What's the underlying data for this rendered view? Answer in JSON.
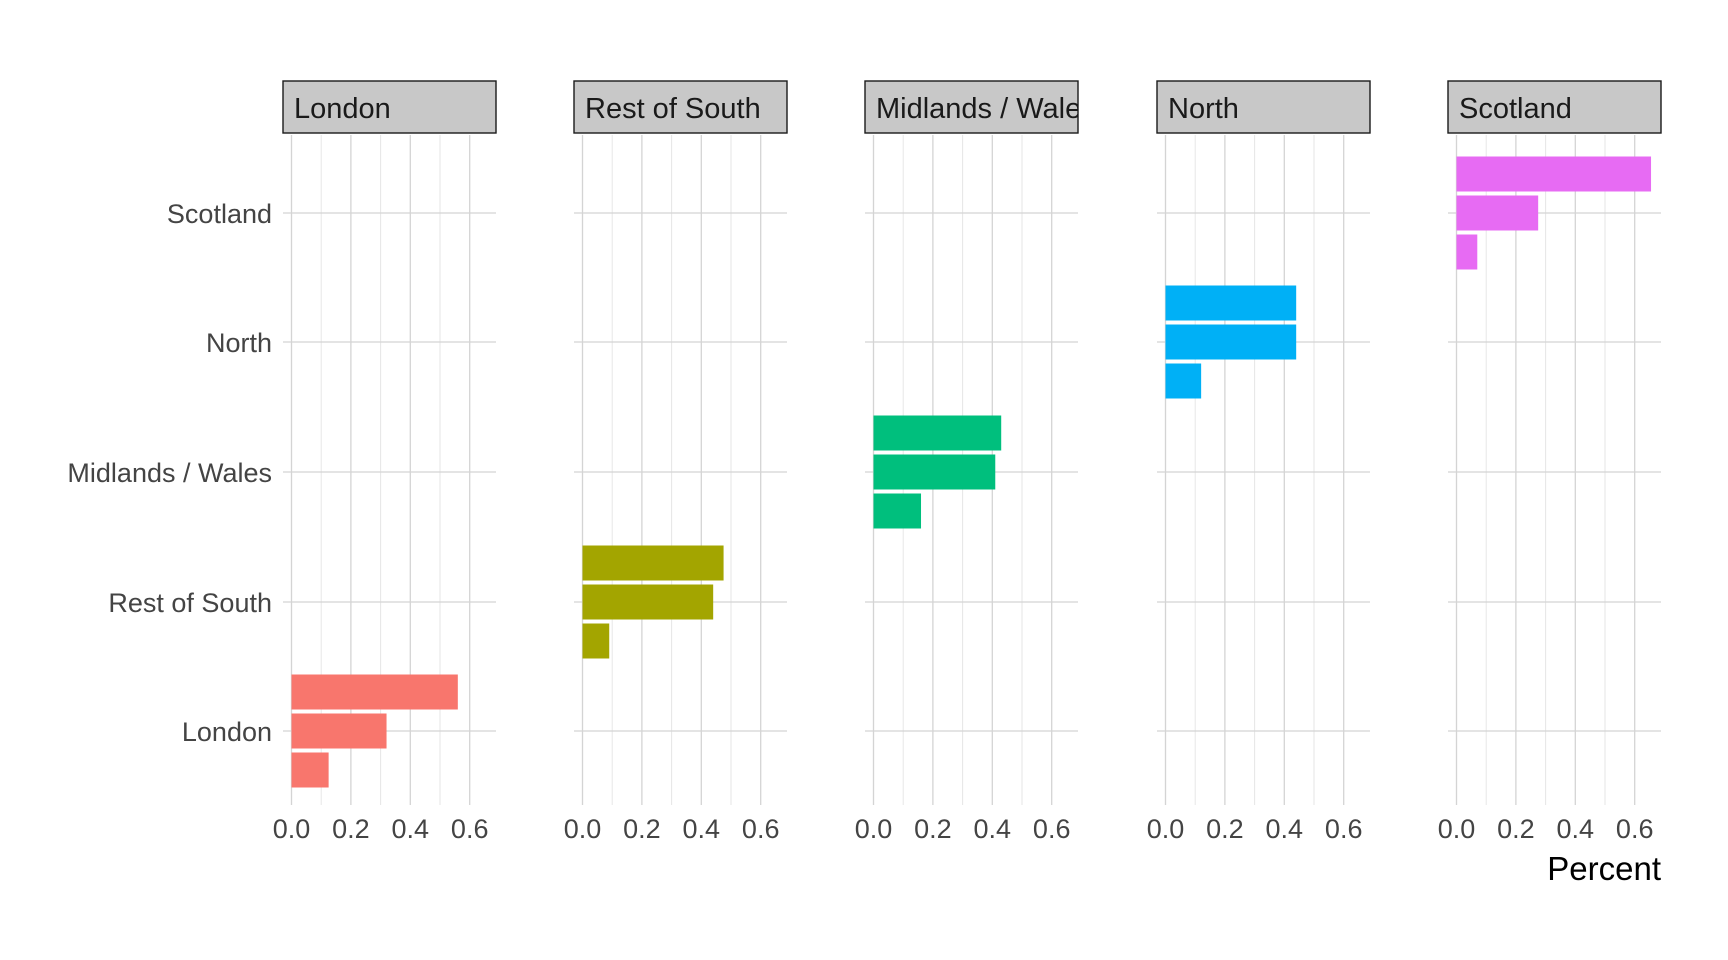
{
  "chart_data": {
    "type": "bar",
    "orientation": "horizontal",
    "facet_by": "panel",
    "panels": [
      "London",
      "Rest of South",
      "Midlands / Wales",
      "North",
      "Scotland"
    ],
    "categories": [
      "Scotland",
      "North",
      "Midlands / Wales",
      "Rest of South",
      "London"
    ],
    "xlabel": "Percent",
    "ylabel": "",
    "xlim": [
      0,
      0.68
    ],
    "x_ticks": [
      "0.0",
      "0.2",
      "0.4",
      "0.6"
    ],
    "x_tick_values": [
      0,
      0.2,
      0.4,
      0.6
    ],
    "grid": true,
    "legend": "none",
    "colors": [
      "#F8766D",
      "#A3A500",
      "#00BF7D",
      "#00B0F6",
      "#E76BF3"
    ],
    "panel_data": [
      {
        "panel": "London",
        "category": "London",
        "values": [
          0.56,
          0.32,
          0.125
        ]
      },
      {
        "panel": "Rest of South",
        "category": "Rest of South",
        "values": [
          0.475,
          0.44,
          0.09
        ]
      },
      {
        "panel": "Midlands / Wales",
        "category": "Midlands / Wales",
        "values": [
          0.43,
          0.41,
          0.16
        ]
      },
      {
        "panel": "North",
        "category": "North",
        "values": [
          0.44,
          0.44,
          0.12
        ]
      },
      {
        "panel": "Scotland",
        "category": "Scotland",
        "values": [
          0.655,
          0.275,
          0.07
        ]
      }
    ]
  }
}
